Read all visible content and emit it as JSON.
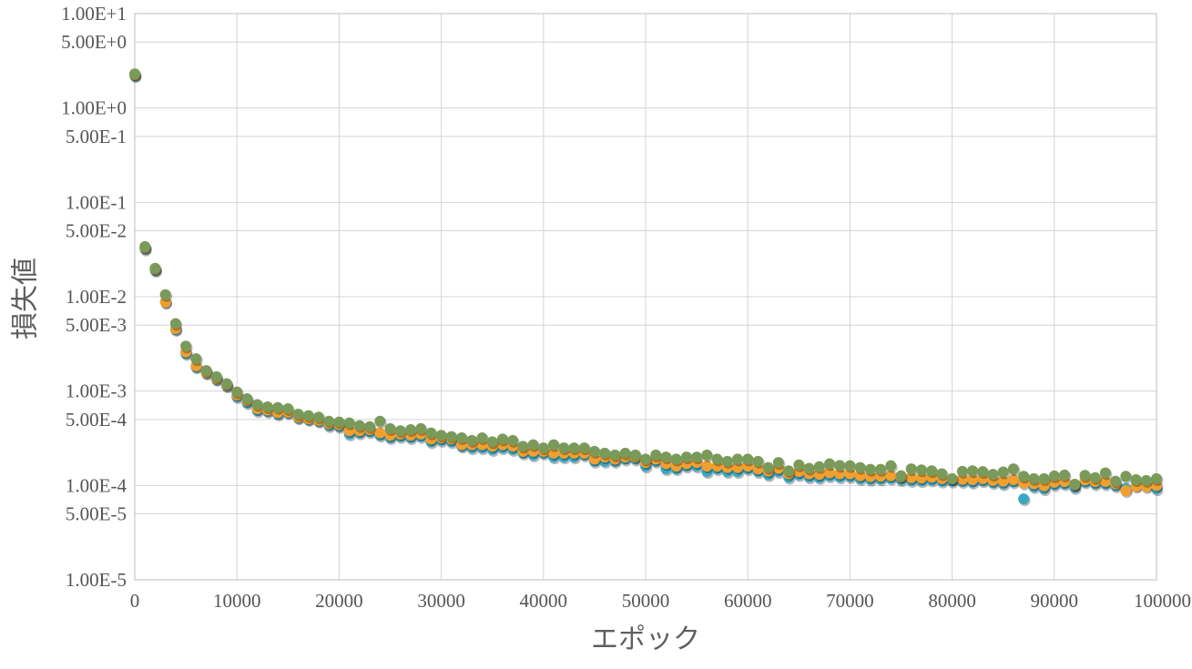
{
  "chart_data": {
    "type": "scatter",
    "title": "",
    "xlabel": "エポック",
    "ylabel": "損失値",
    "xlim": [
      0,
      100000
    ],
    "ylim": [
      1e-05,
      10
    ],
    "yscale": "log",
    "grid": true,
    "legend": "none",
    "x_ticks": [
      0,
      10000,
      20000,
      30000,
      40000,
      50000,
      60000,
      70000,
      80000,
      90000,
      100000
    ],
    "x_tick_labels": [
      "0",
      "10000",
      "20000",
      "30000",
      "40000",
      "50000",
      "60000",
      "70000",
      "80000",
      "90000",
      "100000"
    ],
    "y_ticks": [
      10,
      5,
      1,
      0.5,
      0.1,
      0.05,
      0.01,
      0.005,
      0.001,
      0.0005,
      0.0001,
      5e-05,
      1e-05
    ],
    "y_tick_labels": [
      "1.00E+1",
      "5.00E+0",
      "1.00E+0",
      "5.00E-1",
      "1.00E-1",
      "5.00E-2",
      "1.00E-2",
      "5.00E-3",
      "1.00E-3",
      "5.00E-4",
      "1.00E-4",
      "5.00E-5",
      "1.00E-5"
    ],
    "x": [
      0,
      1000,
      2000,
      3000,
      4000,
      5000,
      6000,
      7000,
      8000,
      9000,
      10000,
      11000,
      12000,
      13000,
      14000,
      15000,
      16000,
      17000,
      18000,
      19000,
      20000,
      21000,
      22000,
      23000,
      24000,
      25000,
      26000,
      27000,
      28000,
      29000,
      30000,
      31000,
      32000,
      33000,
      34000,
      35000,
      36000,
      37000,
      38000,
      39000,
      40000,
      41000,
      42000,
      43000,
      44000,
      45000,
      46000,
      47000,
      48000,
      49000,
      50000,
      51000,
      52000,
      53000,
      54000,
      55000,
      56000,
      57000,
      58000,
      59000,
      60000,
      61000,
      62000,
      63000,
      64000,
      65000,
      66000,
      67000,
      68000,
      69000,
      70000,
      71000,
      72000,
      73000,
      74000,
      75000,
      76000,
      77000,
      78000,
      79000,
      80000,
      81000,
      82000,
      83000,
      84000,
      85000,
      86000,
      87000,
      88000,
      89000,
      90000,
      91000,
      92000,
      93000,
      94000,
      95000,
      96000,
      97000,
      98000,
      99000,
      100000
    ],
    "series": [
      {
        "color": "#3aa8c4",
        "values": [
          2.2,
          0.032,
          0.019,
          0.0088,
          0.0045,
          0.0025,
          0.0018,
          0.00155,
          0.00133,
          0.00113,
          0.00087,
          0.00075,
          0.00062,
          0.00061,
          0.00057,
          0.00059,
          0.00052,
          0.0005,
          0.00048,
          0.00043,
          0.00042,
          0.00035,
          0.00036,
          0.00037,
          0.00034,
          0.00032,
          0.00033,
          0.00032,
          0.00033,
          0.00029,
          0.0003,
          0.00029,
          0.00026,
          0.00025,
          0.00025,
          0.00024,
          0.00025,
          0.00024,
          0.00022,
          0.00021,
          0.00022,
          0.0002,
          0.0002,
          0.0002,
          0.00021,
          0.00018,
          0.00018,
          0.00018,
          0.00019,
          0.00019,
          0.00016,
          0.00018,
          0.00015,
          0.00015,
          0.00016,
          0.00016,
          0.00014,
          0.00015,
          0.00014,
          0.00014,
          0.00015,
          0.00014,
          0.00013,
          0.00014,
          0.000122,
          0.00013,
          0.000123,
          0.000121,
          0.000126,
          0.000123,
          0.000124,
          0.000118,
          0.000116,
          0.000117,
          0.000119,
          0.000115,
          0.000113,
          0.000112,
          0.000114,
          0.000111,
          0.000111,
          0.00011,
          0.000108,
          0.000112,
          0.000107,
          0.000104,
          0.000109,
          7.2e-05,
          9.7e-05,
          9.2e-05,
          0.000102,
          0.000104,
          9.5e-05,
          0.000109,
          0.000104,
          0.000104,
          9.9e-05,
          9.3e-05,
          0.000101,
          0.000101,
          9.2e-05
        ]
      },
      {
        "color": "#f0a030",
        "values": [
          2.25,
          0.033,
          0.0195,
          0.0088,
          0.0046,
          0.0026,
          0.00185,
          0.00158,
          0.00136,
          0.00116,
          0.00091,
          0.00079,
          0.00065,
          0.00063,
          0.00059,
          0.0006,
          0.00053,
          0.00051,
          0.00049,
          0.00045,
          0.00044,
          0.00038,
          0.00038,
          0.00039,
          0.00036,
          0.00034,
          0.00035,
          0.00034,
          0.00035,
          0.00031,
          0.00032,
          0.00031,
          0.00027,
          0.00027,
          0.00027,
          0.00026,
          0.00027,
          0.00026,
          0.00023,
          0.00023,
          0.00023,
          0.00022,
          0.00022,
          0.00022,
          0.00022,
          0.00019,
          0.0002,
          0.00019,
          0.0002,
          0.0002,
          0.000175,
          0.00019,
          0.00017,
          0.00016,
          0.00017,
          0.000175,
          0.00016,
          0.00016,
          0.000155,
          0.000155,
          0.00016,
          0.00015,
          0.000142,
          0.000152,
          0.000133,
          0.00014,
          0.000133,
          0.000131,
          0.000136,
          0.000133,
          0.000133,
          0.000127,
          0.000124,
          0.000125,
          0.000127,
          0.000123,
          0.000121,
          0.00012,
          0.000122,
          0.000118,
          0.000117,
          0.000116,
          0.000115,
          0.000118,
          0.000113,
          0.000111,
          0.000115,
          0.000106,
          0.000104,
          9.9e-05,
          0.000108,
          0.00011,
          0.000101,
          0.000114,
          0.00011,
          0.00011,
          0.000104,
          8.8e-05,
          9.8e-05,
          9.7e-05,
          0.0001
        ]
      },
      {
        "color": "#7a9a5a",
        "values": [
          2.3,
          0.034,
          0.02,
          0.0105,
          0.0052,
          0.003,
          0.0022,
          0.00165,
          0.00142,
          0.0012,
          0.00098,
          0.00083,
          0.00072,
          0.00068,
          0.00067,
          0.00065,
          0.00057,
          0.00055,
          0.00053,
          0.00048,
          0.00047,
          0.00046,
          0.00043,
          0.00042,
          0.00048,
          0.0004,
          0.00038,
          0.00039,
          0.0004,
          0.00036,
          0.00034,
          0.00033,
          0.00032,
          0.0003,
          0.00032,
          0.00029,
          0.00031,
          0.0003,
          0.00026,
          0.00027,
          0.00025,
          0.00027,
          0.00025,
          0.00025,
          0.00025,
          0.00023,
          0.00022,
          0.00021,
          0.00022,
          0.00021,
          0.00019,
          0.00021,
          0.0002,
          0.00019,
          0.0002,
          0.0002,
          0.00021,
          0.00019,
          0.00018,
          0.00019,
          0.00019,
          0.00018,
          0.000155,
          0.000175,
          0.000143,
          0.000165,
          0.000152,
          0.000158,
          0.00017,
          0.000163,
          0.000162,
          0.000155,
          0.000148,
          0.000148,
          0.000162,
          0.000127,
          0.00015,
          0.000146,
          0.000143,
          0.000133,
          0.000118,
          0.000141,
          0.000143,
          0.00014,
          0.000131,
          0.000139,
          0.00015,
          0.000125,
          0.000118,
          0.000118,
          0.000126,
          0.000129,
          0.000103,
          0.000128,
          0.000121,
          0.000136,
          0.000111,
          0.000125,
          0.000115,
          0.000113,
          0.000118
        ]
      }
    ]
  }
}
